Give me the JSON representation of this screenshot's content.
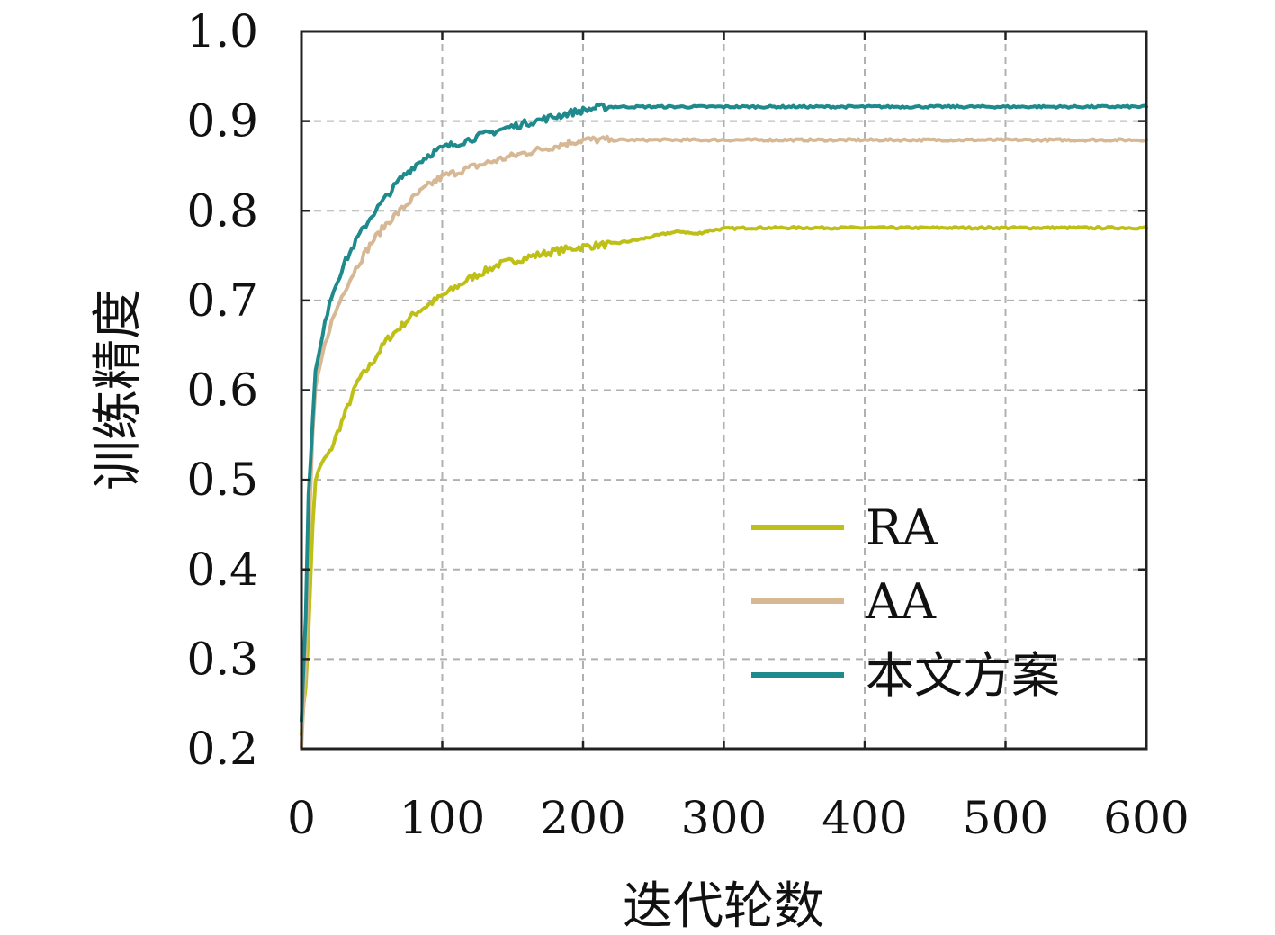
{
  "chart_data": {
    "type": "line",
    "xlabel": "迭代轮数",
    "ylabel": "训练精度",
    "xlim": [
      0,
      600
    ],
    "ylim": [
      0.2,
      1.0
    ],
    "xticks": [
      0,
      100,
      200,
      300,
      400,
      500,
      600
    ],
    "xtick_labels": [
      "0",
      "100",
      "200",
      "300",
      "400",
      "500",
      "600"
    ],
    "yticks": [
      0.2,
      0.3,
      0.4,
      0.5,
      0.6,
      0.7,
      0.8,
      0.9,
      1.0
    ],
    "ytick_labels": [
      "0.2",
      "0.3",
      "0.4",
      "0.5",
      "0.6",
      "0.7",
      "0.8",
      "0.9",
      "1.0"
    ],
    "grid": true,
    "legend_position": "lower-right",
    "series": [
      {
        "name": "RA",
        "color": "#bfc017",
        "x": [
          0,
          3,
          5,
          8,
          10,
          15,
          20,
          30,
          40,
          50,
          60,
          70,
          80,
          90,
          100,
          120,
          140,
          160,
          180,
          200,
          220,
          240,
          260,
          270,
          280,
          290,
          300,
          320,
          350,
          400,
          450,
          500,
          550,
          600
        ],
        "y": [
          0.22,
          0.27,
          0.33,
          0.45,
          0.5,
          0.52,
          0.53,
          0.57,
          0.61,
          0.63,
          0.655,
          0.67,
          0.685,
          0.695,
          0.705,
          0.725,
          0.74,
          0.748,
          0.755,
          0.76,
          0.763,
          0.768,
          0.775,
          0.777,
          0.774,
          0.778,
          0.78,
          0.781,
          0.781,
          0.781,
          0.781,
          0.781,
          0.781,
          0.781
        ]
      },
      {
        "name": "AA",
        "color": "#d6b895",
        "x": [
          0,
          3,
          5,
          8,
          10,
          15,
          20,
          30,
          40,
          50,
          60,
          70,
          80,
          90,
          100,
          120,
          140,
          160,
          180,
          190,
          200,
          210,
          220,
          250,
          300,
          400,
          500,
          600
        ],
        "y": [
          0.2,
          0.3,
          0.43,
          0.55,
          0.6,
          0.64,
          0.67,
          0.71,
          0.74,
          0.765,
          0.785,
          0.8,
          0.815,
          0.828,
          0.838,
          0.848,
          0.857,
          0.865,
          0.872,
          0.876,
          0.879,
          0.879,
          0.879,
          0.879,
          0.879,
          0.879,
          0.879,
          0.879
        ]
      },
      {
        "name": "本文方案",
        "color": "#1e8a8c",
        "x": [
          0,
          3,
          5,
          8,
          10,
          15,
          20,
          30,
          40,
          50,
          60,
          70,
          80,
          90,
          100,
          120,
          140,
          160,
          180,
          190,
          200,
          210,
          220,
          250,
          300,
          400,
          500,
          600
        ],
        "y": [
          0.23,
          0.35,
          0.48,
          0.57,
          0.62,
          0.66,
          0.7,
          0.74,
          0.77,
          0.795,
          0.815,
          0.835,
          0.85,
          0.862,
          0.87,
          0.88,
          0.89,
          0.898,
          0.905,
          0.909,
          0.912,
          0.915,
          0.916,
          0.916,
          0.916,
          0.916,
          0.916,
          0.916
        ]
      }
    ]
  }
}
